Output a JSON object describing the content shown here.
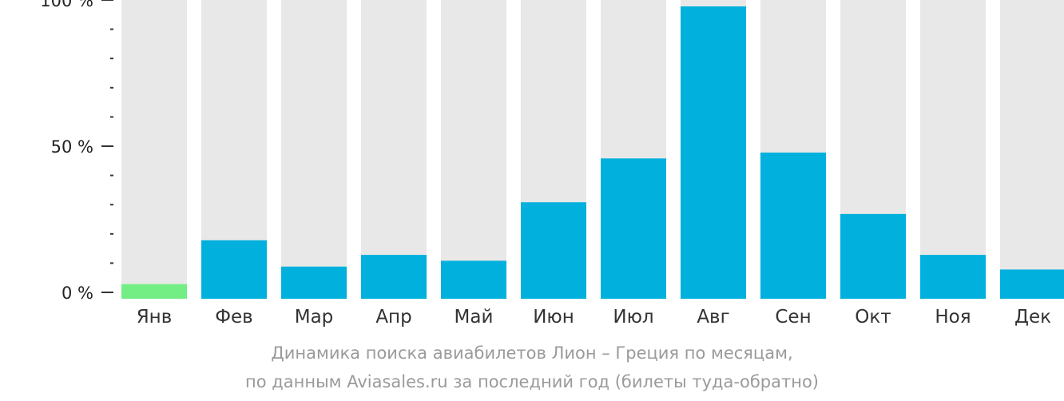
{
  "chart_data": {
    "type": "bar",
    "categories": [
      "Янв",
      "Фев",
      "Мар",
      "Апр",
      "Май",
      "Июн",
      "Июл",
      "Авг",
      "Сен",
      "Окт",
      "Ноя",
      "Дек"
    ],
    "values": [
      5,
      20,
      11,
      15,
      13,
      33,
      48,
      100,
      50,
      29,
      15,
      10
    ],
    "ylim": [
      0,
      100
    ],
    "yticks": [
      {
        "value": 0,
        "label": "0 %"
      },
      {
        "value": 50,
        "label": "50 %"
      },
      {
        "value": 100,
        "label": "100 %"
      }
    ],
    "minor_tick_step": 10,
    "colors": {
      "bar": "#02b0dd",
      "highlight_bar": "#72ee85",
      "track": "#e8e8e8",
      "axis": "#333333"
    },
    "highlight_index": 0,
    "caption": [
      "Динамика поиска авиабилетов Лион – Греция по месяцам,",
      "по данным Aviasales.ru за последний год (билеты туда-обратно)"
    ]
  }
}
